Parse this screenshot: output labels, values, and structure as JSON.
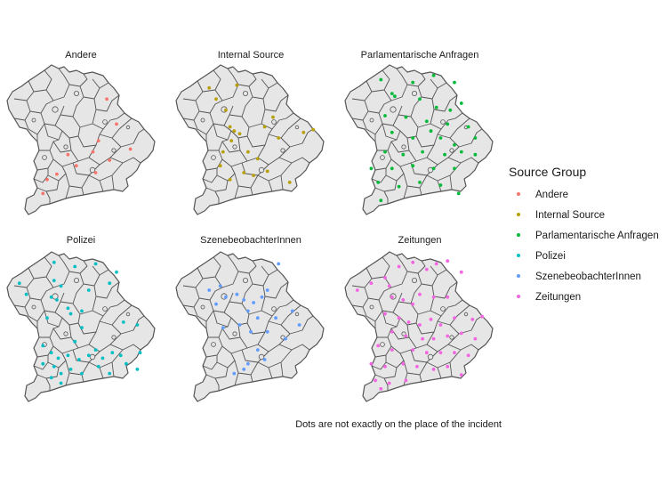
{
  "chart_data": {
    "type": "scatter",
    "title": "",
    "caption": "Dots are not exactly on the place of the incident",
    "legend": {
      "title": "Source Group",
      "placement": "right",
      "entries": [
        {
          "name": "Andere",
          "color": "#F8766D"
        },
        {
          "name": "Internal Source",
          "color": "#B79F00"
        },
        {
          "name": "Parlamentarische Anfragen",
          "color": "#00BA38"
        },
        {
          "name": "Polizei",
          "color": "#00BFC4"
        },
        {
          "name": "SzenebeobachterInnen",
          "color": "#619CFF"
        },
        {
          "name": "Zeitungen",
          "color": "#F564E3"
        }
      ]
    },
    "grid": false,
    "facets": [
      {
        "name": "Andere",
        "color": "#F8766D",
        "points": [
          [
            0.68,
            0.22
          ],
          [
            0.75,
            0.4
          ],
          [
            0.62,
            0.52
          ],
          [
            0.58,
            0.6
          ],
          [
            0.46,
            0.7
          ],
          [
            0.4,
            0.62
          ],
          [
            0.6,
            0.75
          ],
          [
            0.7,
            0.66
          ],
          [
            0.85,
            0.58
          ],
          [
            0.32,
            0.76
          ],
          [
            0.25,
            0.8
          ],
          [
            0.22,
            0.9
          ]
        ]
      },
      {
        "name": "Internal Source",
        "color": "#B79F00",
        "points": [
          [
            0.25,
            0.22
          ],
          [
            0.32,
            0.3
          ],
          [
            0.2,
            0.14
          ],
          [
            0.4,
            0.12
          ],
          [
            0.35,
            0.42
          ],
          [
            0.38,
            0.45
          ],
          [
            0.42,
            0.47
          ],
          [
            0.36,
            0.52
          ],
          [
            0.48,
            0.6
          ],
          [
            0.6,
            0.42
          ],
          [
            0.7,
            0.5
          ],
          [
            0.55,
            0.65
          ],
          [
            0.3,
            0.6
          ],
          [
            0.28,
            0.7
          ],
          [
            0.45,
            0.75
          ],
          [
            0.52,
            0.77
          ],
          [
            0.62,
            0.74
          ],
          [
            0.78,
            0.82
          ],
          [
            0.88,
            0.46
          ],
          [
            0.95,
            0.44
          ],
          [
            0.35,
            0.8
          ],
          [
            0.66,
            0.35
          ]
        ]
      },
      {
        "name": "Parlamentarische Anfragen",
        "color": "#00BA38",
        "points": [
          [
            0.22,
            0.08
          ],
          [
            0.45,
            0.1
          ],
          [
            0.6,
            0.05
          ],
          [
            0.75,
            0.1
          ],
          [
            0.3,
            0.18
          ],
          [
            0.32,
            0.2
          ],
          [
            0.5,
            0.22
          ],
          [
            0.62,
            0.28
          ],
          [
            0.72,
            0.3
          ],
          [
            0.8,
            0.25
          ],
          [
            0.25,
            0.34
          ],
          [
            0.4,
            0.35
          ],
          [
            0.55,
            0.38
          ],
          [
            0.7,
            0.4
          ],
          [
            0.85,
            0.42
          ],
          [
            0.3,
            0.46
          ],
          [
            0.45,
            0.5
          ],
          [
            0.58,
            0.45
          ],
          [
            0.65,
            0.5
          ],
          [
            0.75,
            0.55
          ],
          [
            0.9,
            0.5
          ],
          [
            0.25,
            0.6
          ],
          [
            0.38,
            0.62
          ],
          [
            0.52,
            0.6
          ],
          [
            0.68,
            0.62
          ],
          [
            0.8,
            0.6
          ],
          [
            0.3,
            0.72
          ],
          [
            0.45,
            0.7
          ],
          [
            0.6,
            0.72
          ],
          [
            0.75,
            0.72
          ],
          [
            0.9,
            0.62
          ],
          [
            0.2,
            0.82
          ],
          [
            0.35,
            0.85
          ],
          [
            0.5,
            0.82
          ],
          [
            0.65,
            0.84
          ],
          [
            0.78,
            0.9
          ],
          [
            0.22,
            0.95
          ],
          [
            0.15,
            0.72
          ]
        ]
      },
      {
        "name": "Polizei",
        "color": "#00BFC4",
        "points": [
          [
            0.05,
            0.2
          ],
          [
            0.1,
            0.28
          ],
          [
            0.3,
            0.05
          ],
          [
            0.45,
            0.08
          ],
          [
            0.6,
            0.06
          ],
          [
            0.75,
            0.12
          ],
          [
            0.3,
            0.18
          ],
          [
            0.35,
            0.22
          ],
          [
            0.55,
            0.25
          ],
          [
            0.7,
            0.2
          ],
          [
            0.28,
            0.3
          ],
          [
            0.32,
            0.32
          ],
          [
            0.4,
            0.38
          ],
          [
            0.42,
            0.42
          ],
          [
            0.5,
            0.4
          ],
          [
            0.25,
            0.45
          ],
          [
            0.5,
            0.52
          ],
          [
            0.8,
            0.48
          ],
          [
            0.9,
            0.5
          ],
          [
            0.22,
            0.65
          ],
          [
            0.28,
            0.7
          ],
          [
            0.33,
            0.74
          ],
          [
            0.4,
            0.72
          ],
          [
            0.48,
            0.75
          ],
          [
            0.55,
            0.72
          ],
          [
            0.6,
            0.68
          ],
          [
            0.65,
            0.74
          ],
          [
            0.72,
            0.7
          ],
          [
            0.78,
            0.72
          ],
          [
            0.82,
            0.78
          ],
          [
            0.92,
            0.7
          ],
          [
            0.9,
            0.82
          ],
          [
            0.3,
            0.8
          ],
          [
            0.35,
            0.85
          ],
          [
            0.42,
            0.82
          ],
          [
            0.28,
            0.88
          ],
          [
            0.22,
            0.78
          ],
          [
            0.62,
            0.8
          ],
          [
            0.7,
            0.85
          ],
          [
            0.5,
            0.85
          ],
          [
            0.35,
            0.92
          ],
          [
            0.45,
            0.62
          ]
        ]
      },
      {
        "name": "SzenebeobachterInnen",
        "color": "#619CFF",
        "points": [
          [
            0.2,
            0.25
          ],
          [
            0.28,
            0.22
          ],
          [
            0.32,
            0.3
          ],
          [
            0.25,
            0.35
          ],
          [
            0.4,
            0.28
          ],
          [
            0.45,
            0.32
          ],
          [
            0.52,
            0.34
          ],
          [
            0.58,
            0.3
          ],
          [
            0.62,
            0.25
          ],
          [
            0.48,
            0.4
          ],
          [
            0.55,
            0.45
          ],
          [
            0.68,
            0.45
          ],
          [
            0.8,
            0.4
          ],
          [
            0.42,
            0.5
          ],
          [
            0.5,
            0.55
          ],
          [
            0.3,
            0.52
          ],
          [
            0.62,
            0.55
          ],
          [
            0.55,
            0.68
          ],
          [
            0.6,
            0.75
          ],
          [
            0.48,
            0.78
          ],
          [
            0.45,
            0.82
          ],
          [
            0.38,
            0.85
          ],
          [
            0.7,
            0.06
          ],
          [
            0.85,
            0.5
          ],
          [
            0.75,
            0.6
          ]
        ]
      },
      {
        "name": "Zeitungen",
        "color": "#F564E3",
        "points": [
          [
            0.05,
            0.25
          ],
          [
            0.15,
            0.2
          ],
          [
            0.25,
            0.16
          ],
          [
            0.28,
            0.22
          ],
          [
            0.35,
            0.08
          ],
          [
            0.45,
            0.05
          ],
          [
            0.55,
            0.1
          ],
          [
            0.62,
            0.06
          ],
          [
            0.7,
            0.04
          ],
          [
            0.8,
            0.12
          ],
          [
            0.3,
            0.3
          ],
          [
            0.38,
            0.32
          ],
          [
            0.45,
            0.35
          ],
          [
            0.5,
            0.28
          ],
          [
            0.6,
            0.3
          ],
          [
            0.7,
            0.3
          ],
          [
            0.25,
            0.42
          ],
          [
            0.35,
            0.45
          ],
          [
            0.42,
            0.48
          ],
          [
            0.5,
            0.5
          ],
          [
            0.58,
            0.46
          ],
          [
            0.65,
            0.5
          ],
          [
            0.75,
            0.45
          ],
          [
            0.88,
            0.46
          ],
          [
            0.95,
            0.44
          ],
          [
            0.3,
            0.55
          ],
          [
            0.4,
            0.58
          ],
          [
            0.52,
            0.6
          ],
          [
            0.6,
            0.6
          ],
          [
            0.7,
            0.58
          ],
          [
            0.8,
            0.56
          ],
          [
            0.9,
            0.6
          ],
          [
            0.2,
            0.65
          ],
          [
            0.3,
            0.68
          ],
          [
            0.45,
            0.68
          ],
          [
            0.55,
            0.7
          ],
          [
            0.65,
            0.7
          ],
          [
            0.75,
            0.7
          ],
          [
            0.85,
            0.72
          ],
          [
            0.15,
            0.78
          ],
          [
            0.25,
            0.8
          ],
          [
            0.38,
            0.78
          ],
          [
            0.48,
            0.8
          ],
          [
            0.6,
            0.82
          ],
          [
            0.7,
            0.8
          ],
          [
            0.8,
            0.86
          ],
          [
            0.18,
            0.9
          ],
          [
            0.28,
            0.92
          ],
          [
            0.22,
            0.96
          ],
          [
            0.4,
            0.9
          ]
        ]
      }
    ]
  }
}
